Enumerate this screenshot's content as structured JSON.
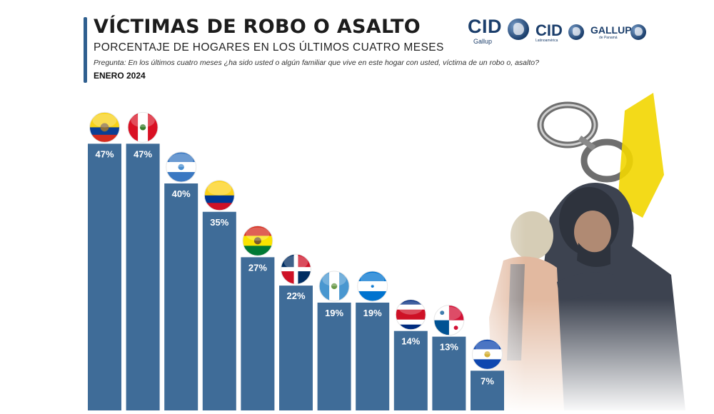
{
  "header": {
    "title": "VÍCTIMAS DE ROBO O ASALTO",
    "subtitle": "PORCENTAJE DE HOGARES EN LOS ÚLTIMOS CUATRO MESES",
    "question": "Pregunta: En los últimos cuatro meses ¿ha sido usted o algún familiar que vive en este hogar con usted, víctima de un robo o, asalto?",
    "date": "ENERO 2024",
    "accent_color": "#2f5f8f"
  },
  "logos": {
    "main": {
      "name": "CID",
      "sub": "Gallup"
    },
    "second": {
      "name": "CID",
      "sub": "Latinoamérica"
    },
    "third": {
      "name": "GALLUP",
      "sub": "de Panamá"
    }
  },
  "chart_data": {
    "type": "bar",
    "categories": [
      "Ecuador",
      "Perú",
      "Nicaragua",
      "Colombia",
      "Bolivia",
      "República Dominicana",
      "Guatemala",
      "Honduras",
      "Costa Rica",
      "Panamá",
      "El Salvador"
    ],
    "values": [
      47,
      47,
      40,
      35,
      27,
      22,
      19,
      19,
      14,
      13,
      7
    ],
    "value_labels": [
      "47%",
      "47%",
      "40%",
      "35%",
      "27%",
      "22%",
      "19%",
      "19%",
      "14%",
      "13%",
      "7%"
    ],
    "unit": "%",
    "ylim": [
      0,
      55
    ],
    "bar_color": "#3f6c98",
    "bar_label_color": "#ffffff",
    "category_markers": "flag icons",
    "flag_icons": [
      "ecuador-flag-icon",
      "peru-flag-icon",
      "nicaragua-flag-icon",
      "colombia-flag-icon",
      "bolivia-flag-icon",
      "dominican-republic-flag-icon",
      "guatemala-flag-icon",
      "honduras-flag-icon",
      "costa-rica-flag-icon",
      "panama-flag-icon",
      "el-salvador-flag-icon"
    ],
    "grid": false,
    "legend": "none"
  }
}
